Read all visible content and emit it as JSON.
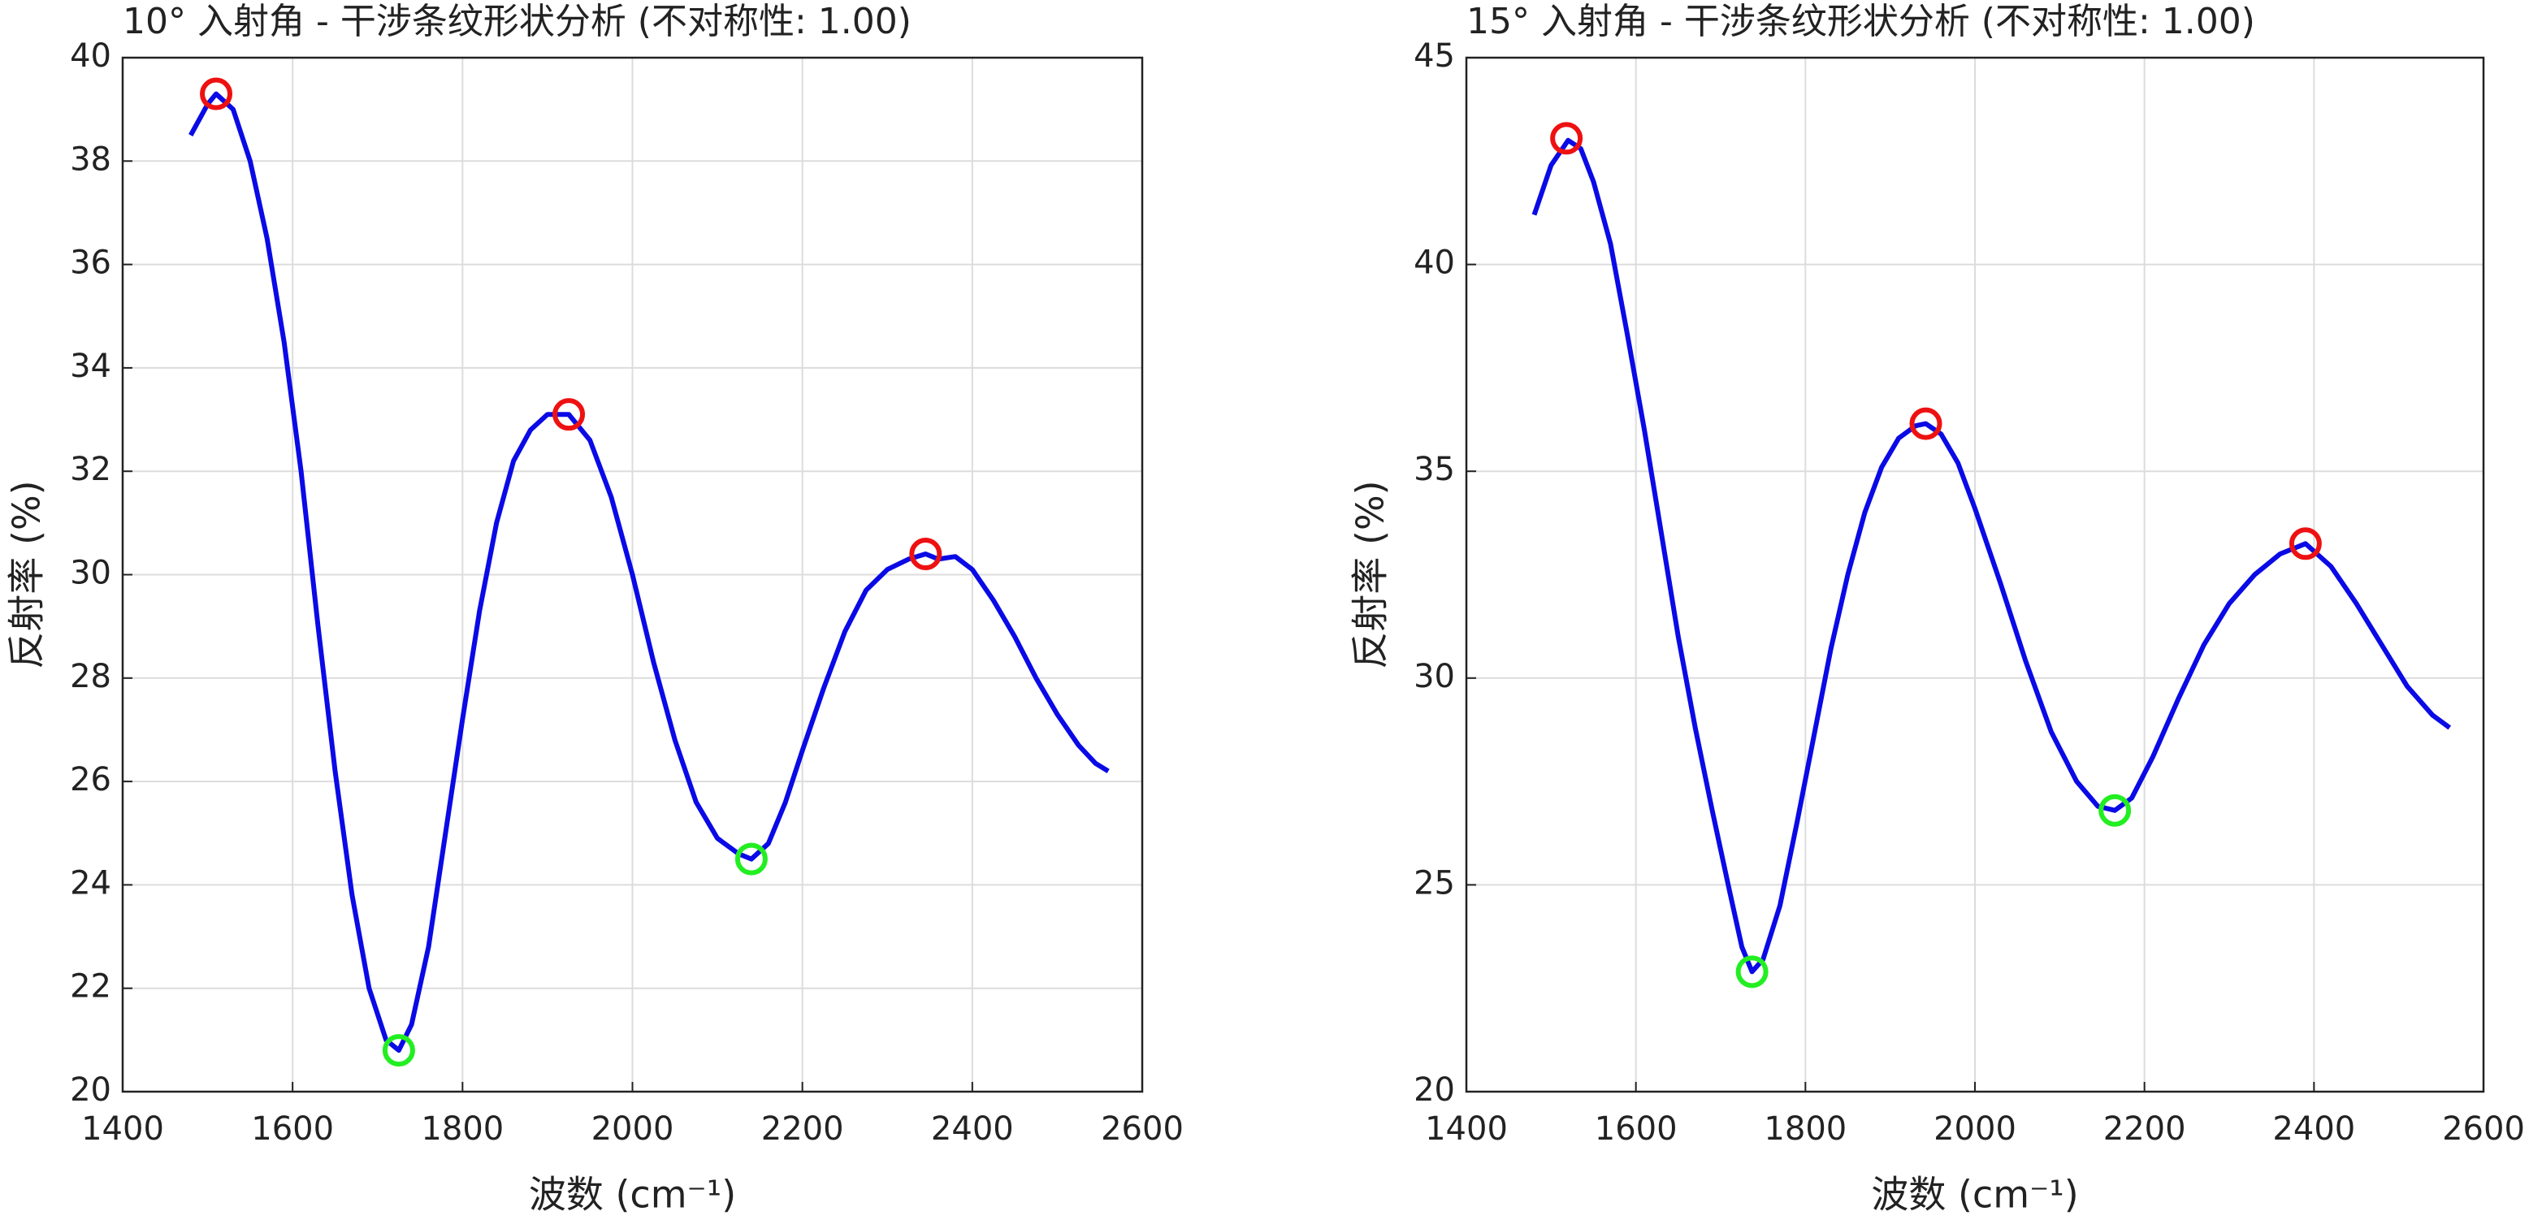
{
  "chart_data": [
    {
      "type": "line",
      "title": "10° 入射角 - 干涉条纹形状分析 (不对称性: 1.00)",
      "xlabel": "波数 (cm⁻¹)",
      "ylabel": "反射率 (%)",
      "xlim": [
        1400,
        2600
      ],
      "xticks": [
        1400,
        1600,
        1800,
        2000,
        2200,
        2400,
        2600
      ],
      "ylim": [
        20,
        40
      ],
      "yticks": [
        20,
        22,
        24,
        26,
        28,
        30,
        32,
        34,
        36,
        38,
        40
      ],
      "grid": true,
      "line": {
        "color": "#0a0ae6",
        "x": [
          1480,
          1500,
          1510,
          1530,
          1550,
          1570,
          1590,
          1610,
          1630,
          1650,
          1670,
          1690,
          1710,
          1725,
          1740,
          1760,
          1780,
          1800,
          1820,
          1840,
          1860,
          1880,
          1900,
          1925,
          1950,
          1975,
          2000,
          2025,
          2050,
          2075,
          2100,
          2125,
          2140,
          2160,
          2180,
          2200,
          2225,
          2250,
          2275,
          2300,
          2325,
          2345,
          2360,
          2380,
          2400,
          2425,
          2450,
          2475,
          2500,
          2525,
          2545,
          2560
        ],
        "values": [
          38.5,
          39.1,
          39.3,
          39.0,
          38.0,
          36.5,
          34.5,
          32.0,
          29.0,
          26.2,
          23.8,
          22.0,
          21.0,
          20.8,
          21.3,
          22.8,
          25.0,
          27.2,
          29.3,
          31.0,
          32.2,
          32.8,
          33.1,
          33.1,
          32.6,
          31.5,
          30.0,
          28.3,
          26.8,
          25.6,
          24.9,
          24.6,
          24.5,
          24.8,
          25.6,
          26.6,
          27.8,
          28.9,
          29.7,
          30.1,
          30.3,
          30.4,
          30.3,
          30.35,
          30.1,
          29.5,
          28.8,
          28.0,
          27.3,
          26.7,
          26.35,
          26.2
        ]
      },
      "peaks": {
        "color": "#ee1111",
        "x": [
          1510,
          1925,
          2345
        ],
        "values": [
          39.3,
          33.1,
          30.4
        ]
      },
      "valleys": {
        "color": "#22ee22",
        "x": [
          1725,
          2140
        ],
        "values": [
          20.8,
          24.5
        ]
      }
    },
    {
      "type": "line",
      "title": "15° 入射角 - 干涉条纹形状分析 (不对称性: 1.00)",
      "xlabel": "波数 (cm⁻¹)",
      "ylabel": "反射率 (%)",
      "xlim": [
        1400,
        2600
      ],
      "xticks": [
        1400,
        1600,
        1800,
        2000,
        2200,
        2400,
        2600
      ],
      "ylim": [
        20,
        45
      ],
      "yticks": [
        20,
        25,
        30,
        35,
        40,
        45
      ],
      "grid": true,
      "line": {
        "color": "#0a0ae6",
        "x": [
          1480,
          1500,
          1520,
          1535,
          1550,
          1570,
          1590,
          1610,
          1630,
          1650,
          1670,
          1690,
          1710,
          1725,
          1737,
          1750,
          1770,
          1790,
          1810,
          1830,
          1850,
          1870,
          1890,
          1910,
          1930,
          1942,
          1960,
          1980,
          2000,
          2030,
          2060,
          2090,
          2120,
          2145,
          2165,
          2185,
          2210,
          2240,
          2270,
          2300,
          2330,
          2360,
          2390,
          2420,
          2450,
          2480,
          2510,
          2540,
          2560
        ],
        "values": [
          41.2,
          42.4,
          43.0,
          42.8,
          42.0,
          40.5,
          38.3,
          36.0,
          33.5,
          31.0,
          28.8,
          26.8,
          24.9,
          23.5,
          22.9,
          23.2,
          24.5,
          26.5,
          28.6,
          30.7,
          32.5,
          34.0,
          35.1,
          35.8,
          36.1,
          36.15,
          35.9,
          35.2,
          34.1,
          32.3,
          30.4,
          28.7,
          27.5,
          26.9,
          26.8,
          27.1,
          28.1,
          29.5,
          30.8,
          31.8,
          32.5,
          33.0,
          33.25,
          32.7,
          31.8,
          30.8,
          29.8,
          29.1,
          28.8
        ]
      },
      "peaks": {
        "color": "#ee1111",
        "x": [
          1518,
          1942,
          2390
        ],
        "values": [
          43.05,
          36.15,
          33.25
        ]
      },
      "valleys": {
        "color": "#22ee22",
        "x": [
          1737,
          2165
        ],
        "values": [
          22.9,
          26.8
        ]
      }
    }
  ]
}
